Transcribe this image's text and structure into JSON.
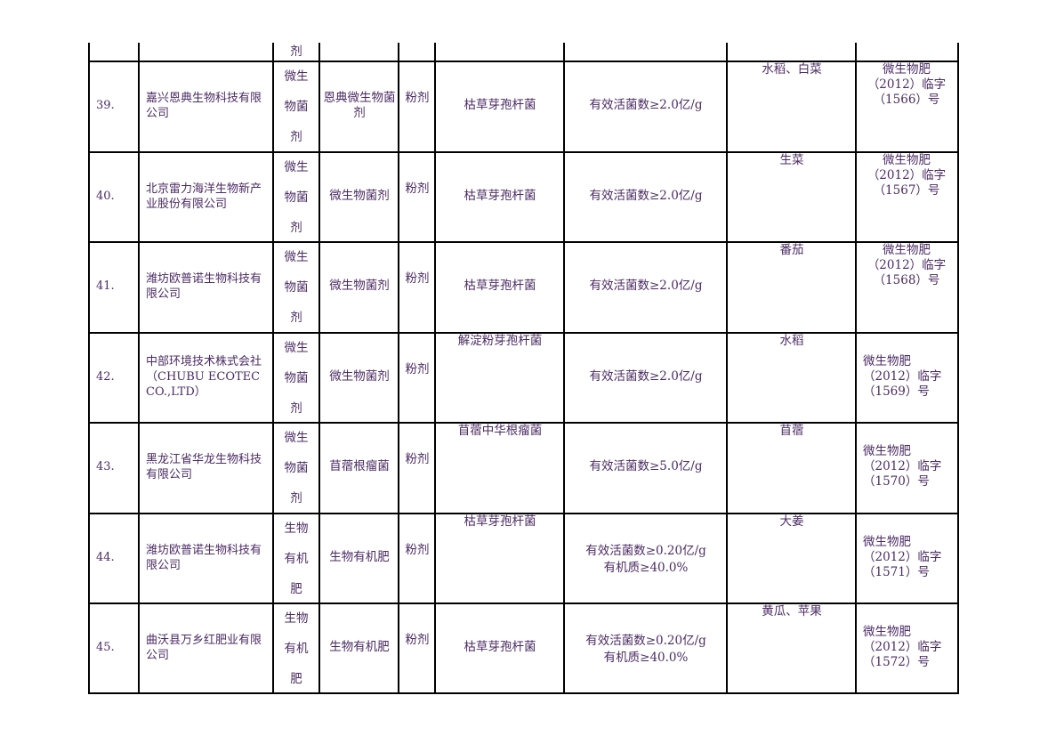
{
  "top_fragment": "剂",
  "rows": [
    {
      "no": "39.",
      "company": "嘉兴恩典生物科技有限公司",
      "type": [
        "微生",
        "物菌",
        "剂"
      ],
      "product": "恩典微生物菌剂",
      "form": "粉剂",
      "strain": "枯草芽孢杆菌",
      "content": [
        "有效活菌数≥2.0亿/g"
      ],
      "crop": "水稻、白菜",
      "reg": [
        "微生物肥",
        "（2012）临字",
        "（1566）号"
      ]
    },
    {
      "no": "40.",
      "company": "北京雷力海洋生物新产业股份有限公司",
      "type": [
        "微生",
        "物菌",
        "剂"
      ],
      "product": "微生物菌剂",
      "form": "粉剂",
      "strain": "枯草芽孢杆菌",
      "content": [
        "有效活菌数≥2.0亿/g"
      ],
      "crop": "生菜",
      "reg": [
        "微生物肥",
        "（2012）临字",
        "（1567）号"
      ]
    },
    {
      "no": "41.",
      "company": "潍坊欧普诺生物科技有限公司",
      "type": [
        "微生",
        "物菌",
        "剂"
      ],
      "product": "微生物菌剂",
      "form": "粉剂",
      "strain": "枯草芽孢杆菌",
      "content": [
        "有效活菌数≥2.0亿/g"
      ],
      "crop": "番茄",
      "reg": [
        "微生物肥",
        "（2012）临字",
        "（1568）号"
      ]
    },
    {
      "no": "42.",
      "company": "中部环境技术株式会社（CHUBU ECOTEC CO.,LTD）",
      "type": [
        "微生",
        "物菌",
        "剂"
      ],
      "product": "微生物菌剂",
      "form": "粉剂",
      "strain": "解淀粉芽孢杆菌",
      "content": [
        "有效活菌数≥2.0亿/g"
      ],
      "crop": "水稻",
      "reg": [
        "微生物肥",
        "（2012）临字",
        "（1569）号"
      ]
    },
    {
      "no": "43.",
      "company": "黑龙江省华龙生物科技有限公司",
      "type": [
        "微生",
        "物菌",
        "剂"
      ],
      "product": "苜蓿根瘤菌",
      "form": "粉剂",
      "strain": "苜蓿中华根瘤菌",
      "content": [
        "有效活菌数≥5.0亿/g"
      ],
      "crop": "苜蓿",
      "reg": [
        "微生物肥",
        "（2012）临字",
        "（1570）号"
      ]
    },
    {
      "no": "44.",
      "company": "潍坊欧普诺生物科技有限公司",
      "type": [
        "生物",
        "有机",
        "肥"
      ],
      "product": "生物有机肥",
      "form": "粉剂",
      "strain": "枯草芽孢杆菌",
      "content": [
        "有效活菌数≥0.20亿/g",
        "有机质≥40.0%"
      ],
      "crop": "大姜",
      "reg": [
        "微生物肥",
        "（2012）临字",
        "（1571）号"
      ]
    },
    {
      "no": "45.",
      "company": "曲沃县万乡红肥业有限公司",
      "type": [
        "生物",
        "有机",
        "肥"
      ],
      "product": "生物有机肥",
      "form": "粉剂",
      "strain": "枯草芽孢杆菌",
      "content": [
        "有效活菌数≥0.20亿/g",
        "有机质≥40.0%"
      ],
      "crop": "黄瓜、苹果",
      "reg": [
        "微生物肥",
        "（2012）临字",
        "（1572）号"
      ]
    }
  ]
}
